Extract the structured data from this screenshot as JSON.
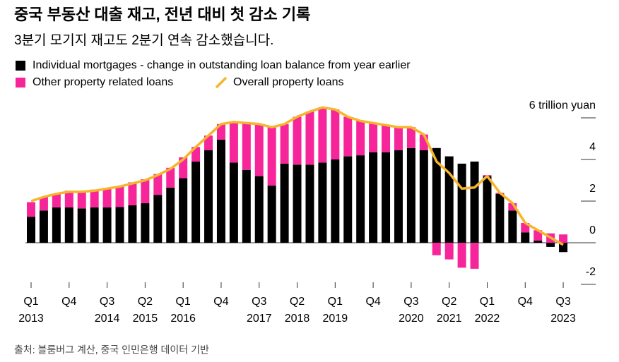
{
  "chart_data": {
    "type": "bar",
    "title": "중국 부동산 대출 재고, 전년 대비 첫 감소 기록",
    "subtitle": "3분기 모기지 재고도 2분기 연속 감소했습니다.",
    "source": "출처: 블룸버그 계산, 중국 인민은행 데이터 기반",
    "categories": [
      "Q1",
      null,
      null,
      "Q4",
      null,
      null,
      "Q3",
      null,
      null,
      "Q2",
      null,
      null,
      "Q1",
      null,
      null,
      "Q4",
      null,
      null,
      "Q3",
      null,
      null,
      "Q2",
      null,
      null,
      "Q1",
      null,
      null,
      "Q4",
      null,
      null,
      "Q3",
      null,
      null,
      "Q2",
      null,
      null,
      "Q1",
      null,
      null,
      "Q4",
      null,
      null,
      "Q3"
    ],
    "category_years": [
      "2013",
      null,
      null,
      null,
      null,
      null,
      "2014",
      null,
      null,
      "2015",
      null,
      null,
      "2016",
      null,
      null,
      null,
      null,
      null,
      "2017",
      null,
      null,
      "2018",
      null,
      null,
      "2019",
      null,
      null,
      null,
      null,
      null,
      "2020",
      null,
      null,
      "2021",
      null,
      null,
      "2022",
      null,
      null,
      null,
      null,
      null,
      "2023"
    ],
    "series": [
      {
        "name": "Individual mortgages - change in outstanding loan balance from year earlier",
        "type": "bar",
        "color": "#000000",
        "values": [
          1.25,
          1.55,
          1.7,
          1.7,
          1.65,
          1.7,
          1.7,
          1.72,
          1.8,
          1.9,
          2.3,
          2.65,
          3.1,
          3.9,
          4.45,
          4.95,
          3.85,
          3.5,
          3.2,
          2.75,
          3.8,
          3.75,
          3.75,
          3.85,
          4.0,
          4.15,
          4.2,
          4.35,
          4.35,
          4.45,
          4.55,
          4.45,
          4.55,
          4.15,
          3.8,
          3.9,
          3.2,
          2.35,
          1.55,
          0.5,
          0.1,
          -0.2,
          -0.45
        ]
      },
      {
        "name": "Other property related loans",
        "type": "bar",
        "color": "#f7259a",
        "values": [
          0.7,
          0.65,
          0.65,
          0.8,
          0.8,
          0.85,
          0.9,
          1.0,
          1.1,
          1.15,
          1.0,
          0.95,
          1.0,
          0.7,
          0.7,
          0.75,
          1.95,
          2.25,
          2.5,
          2.8,
          1.9,
          2.3,
          2.55,
          2.65,
          2.4,
          1.9,
          1.65,
          1.4,
          1.3,
          1.1,
          1.0,
          0.75,
          -0.6,
          -0.8,
          -1.2,
          -1.25,
          0.05,
          0.05,
          0.35,
          0.45,
          0.5,
          0.45,
          0.4
        ]
      },
      {
        "name": "Overall property loans",
        "type": "line",
        "color": "#f6b52b",
        "values": [
          2.0,
          2.2,
          2.35,
          2.45,
          2.45,
          2.5,
          2.6,
          2.7,
          2.85,
          3.0,
          3.25,
          3.55,
          4.0,
          4.6,
          5.15,
          5.7,
          5.8,
          5.75,
          5.7,
          5.55,
          5.7,
          6.05,
          6.3,
          6.5,
          6.4,
          6.05,
          5.85,
          5.75,
          5.65,
          5.55,
          5.55,
          5.2,
          3.9,
          3.35,
          2.6,
          2.65,
          3.2,
          2.4,
          1.9,
          0.95,
          0.6,
          0.25,
          -0.1
        ]
      }
    ],
    "ylim": [
      -2.2,
      6.2
    ],
    "yticks": [
      {
        "value": 6,
        "label": "6 trillion yuan"
      },
      4,
      2,
      0,
      -2
    ]
  }
}
